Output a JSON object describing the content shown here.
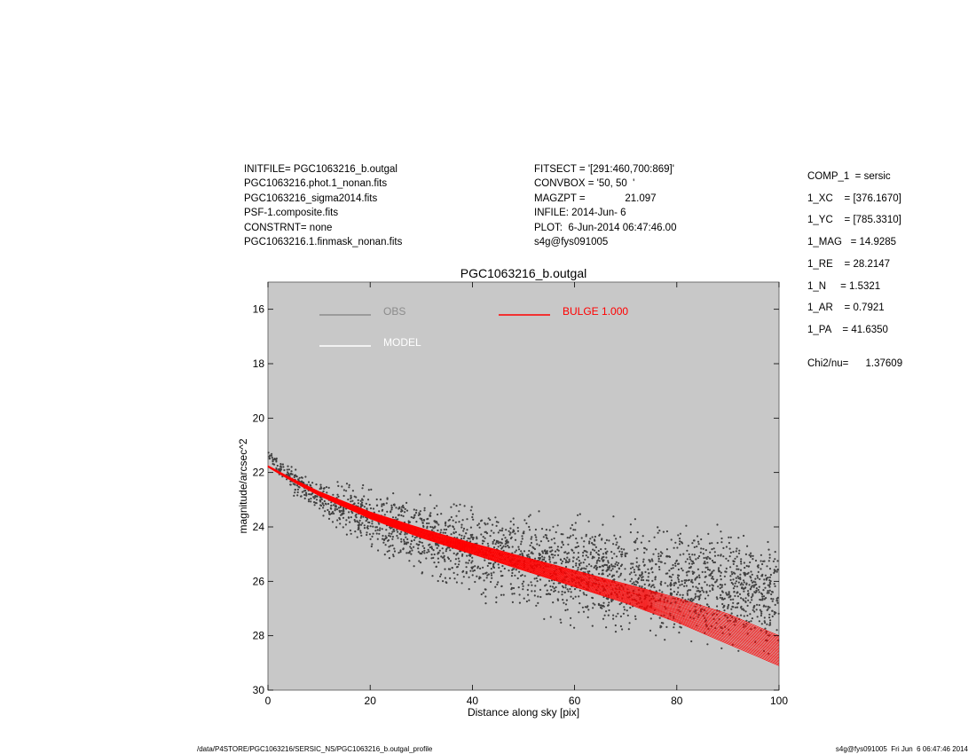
{
  "header_left": [
    "INITFILE= PGC1063216_b.outgal",
    "PGC1063216.phot.1_nonan.fits",
    "PGC1063216_sigma2014.fits",
    "PSF-1.composite.fits",
    "CONSTRNT= none",
    "PGC1063216.1.finmask_nonan.fits"
  ],
  "header_mid": [
    "FITSECT = '[291:460,700:869]'",
    "CONVBOX = '50, 50  '",
    "MAGZPT =              21.097",
    "INFILE: 2014-Jun- 6",
    "PLOT:  6-Jun-2014 06:47:46.00",
    "s4g@fys091005"
  ],
  "params": [
    "COMP_1  = sersic",
    "1_XC    = [376.1670]",
    "1_YC    = [785.3310]",
    "1_MAG   = 14.9285",
    "1_RE    = 28.2147",
    "1_N     = 1.5321",
    "1_AR    = 0.7921",
    "1_PA    = 41.6350"
  ],
  "chi2": "Chi2/nu=      1.37609",
  "footer_left": "/data/P4STORE/PGC1063216/SERSIC_NS/PGC1063216_b.outgal_profile",
  "footer_right": "s4g@fys091005  Fri Jun  6 06:47:46 2014",
  "colors": {
    "plot_bg": "#c8c8c8",
    "obs": "#404040",
    "obs_legend": "#8c8c8c",
    "model": "#ffffff",
    "bulge": "#ff0000"
  },
  "chart_data": {
    "type": "scatter",
    "title": "PGC1063216_b.outgal",
    "xlabel": "Distance along sky [pix]",
    "ylabel": "magnitude/arcsec^2",
    "xlim": [
      0,
      100
    ],
    "ylim": [
      30,
      15
    ],
    "y_inverted": true,
    "xticks": [
      0,
      20,
      40,
      60,
      80,
      100
    ],
    "yticks": [
      16,
      18,
      20,
      22,
      24,
      26,
      28,
      30
    ],
    "legend": [
      {
        "label": "OBS",
        "color": "#8c8c8c"
      },
      {
        "label": "MODEL",
        "color": "#ffffff"
      },
      {
        "label": "BULGE  1.000",
        "color": "#ff0000"
      }
    ],
    "series": [
      {
        "name": "OBS",
        "kind": "scatter-band",
        "x": [
          0,
          2,
          5,
          10,
          15,
          20,
          30,
          40,
          50,
          60,
          70,
          80,
          90,
          100
        ],
        "y_center": [
          21.3,
          21.8,
          22.3,
          22.9,
          23.3,
          23.7,
          24.3,
          24.8,
          25.2,
          25.6,
          25.9,
          26.1,
          26.3,
          26.5
        ],
        "y_spread": [
          0.15,
          0.3,
          0.5,
          0.7,
          0.9,
          1.1,
          1.4,
          1.6,
          1.7,
          1.8,
          1.9,
          2.0,
          2.0,
          2.0
        ]
      },
      {
        "name": "BULGE  1.000",
        "kind": "band",
        "x": [
          0,
          5,
          10,
          20,
          30,
          40,
          50,
          60,
          70,
          80,
          90,
          100
        ],
        "y_upper": [
          21.75,
          22.25,
          22.7,
          23.45,
          24.05,
          24.6,
          25.1,
          25.6,
          26.1,
          26.6,
          27.2,
          28.0
        ],
        "y_lower": [
          21.8,
          22.35,
          22.85,
          23.7,
          24.4,
          25.0,
          25.6,
          26.2,
          26.8,
          27.5,
          28.3,
          29.1
        ]
      }
    ]
  }
}
